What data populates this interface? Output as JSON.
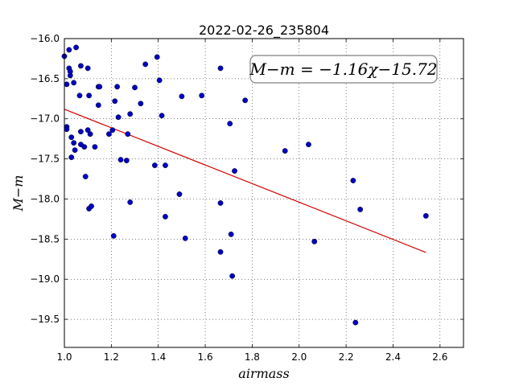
{
  "chart_data": {
    "type": "scatter",
    "title": "2022-02-26_235804",
    "xlabel": "airmass",
    "ylabel": "M−m",
    "xlim": [
      1.0,
      2.7
    ],
    "ylim": [
      -16.0,
      -19.85
    ],
    "y_inverted": true,
    "grid": true,
    "x_ticks": [
      1.0,
      1.2,
      1.4,
      1.6,
      1.8,
      2.0,
      2.2,
      2.4,
      2.6
    ],
    "x_tick_labels": [
      "1.0",
      "1.2",
      "1.4",
      "1.6",
      "1.8",
      "2.0",
      "2.2",
      "2.4",
      "2.6"
    ],
    "y_ticks": [
      -16.0,
      -16.5,
      -17.0,
      -17.5,
      -18.0,
      -18.5,
      -19.0,
      -19.5
    ],
    "y_tick_labels": [
      "−16.0",
      "−16.5",
      "−17.0",
      "−17.5",
      "−18.0",
      "−18.5",
      "−19.0",
      "−19.5"
    ],
    "annotation": "M−m = −1.16χ−15.72",
    "fit_line": {
      "slope": -1.16,
      "intercept": -15.72,
      "x_range": [
        1.0,
        2.54
      ],
      "color": "#d40000"
    },
    "marker_color": "#0000c0",
    "points": [
      {
        "x": 1.0,
        "y": -16.22
      },
      {
        "x": 1.01,
        "y": -17.1
      },
      {
        "x": 1.01,
        "y": -17.13
      },
      {
        "x": 1.01,
        "y": -16.57
      },
      {
        "x": 1.02,
        "y": -16.37
      },
      {
        "x": 1.02,
        "y": -16.14
      },
      {
        "x": 1.025,
        "y": -16.46
      },
      {
        "x": 1.025,
        "y": -16.41
      },
      {
        "x": 1.03,
        "y": -17.23
      },
      {
        "x": 1.03,
        "y": -17.48
      },
      {
        "x": 1.04,
        "y": -16.55
      },
      {
        "x": 1.04,
        "y": -17.3
      },
      {
        "x": 1.045,
        "y": -17.39
      },
      {
        "x": 1.05,
        "y": -16.11
      },
      {
        "x": 1.065,
        "y": -16.71
      },
      {
        "x": 1.07,
        "y": -17.16
      },
      {
        "x": 1.07,
        "y": -17.32
      },
      {
        "x": 1.07,
        "y": -16.34
      },
      {
        "x": 1.085,
        "y": -17.35
      },
      {
        "x": 1.09,
        "y": -17.72
      },
      {
        "x": 1.1,
        "y": -16.37
      },
      {
        "x": 1.1,
        "y": -17.14
      },
      {
        "x": 1.105,
        "y": -16.71
      },
      {
        "x": 1.105,
        "y": -18.12
      },
      {
        "x": 1.11,
        "y": -17.19
      },
      {
        "x": 1.115,
        "y": -18.09
      },
      {
        "x": 1.13,
        "y": -17.35
      },
      {
        "x": 1.145,
        "y": -16.83
      },
      {
        "x": 1.145,
        "y": -16.6
      },
      {
        "x": 1.15,
        "y": -16.6
      },
      {
        "x": 1.19,
        "y": -17.19
      },
      {
        "x": 1.205,
        "y": -17.14
      },
      {
        "x": 1.21,
        "y": -18.46
      },
      {
        "x": 1.215,
        "y": -16.78
      },
      {
        "x": 1.225,
        "y": -16.6
      },
      {
        "x": 1.23,
        "y": -16.98
      },
      {
        "x": 1.24,
        "y": -17.51
      },
      {
        "x": 1.265,
        "y": -17.52
      },
      {
        "x": 1.27,
        "y": -17.19
      },
      {
        "x": 1.28,
        "y": -18.04
      },
      {
        "x": 1.28,
        "y": -16.94
      },
      {
        "x": 1.3,
        "y": -16.61
      },
      {
        "x": 1.325,
        "y": -16.81
      },
      {
        "x": 1.345,
        "y": -16.32
      },
      {
        "x": 1.385,
        "y": -17.58
      },
      {
        "x": 1.395,
        "y": -16.23
      },
      {
        "x": 1.405,
        "y": -16.52
      },
      {
        "x": 1.415,
        "y": -16.96
      },
      {
        "x": 1.43,
        "y": -17.58
      },
      {
        "x": 1.43,
        "y": -18.22
      },
      {
        "x": 1.49,
        "y": -17.94
      },
      {
        "x": 1.5,
        "y": -16.72
      },
      {
        "x": 1.515,
        "y": -18.49
      },
      {
        "x": 1.585,
        "y": -16.71
      },
      {
        "x": 1.665,
        "y": -16.37
      },
      {
        "x": 1.665,
        "y": -18.05
      },
      {
        "x": 1.665,
        "y": -18.66
      },
      {
        "x": 1.705,
        "y": -17.06
      },
      {
        "x": 1.71,
        "y": -18.44
      },
      {
        "x": 1.715,
        "y": -18.96
      },
      {
        "x": 1.725,
        "y": -17.65
      },
      {
        "x": 1.77,
        "y": -16.77
      },
      {
        "x": 1.94,
        "y": -17.4
      },
      {
        "x": 2.04,
        "y": -17.32
      },
      {
        "x": 2.065,
        "y": -18.53
      },
      {
        "x": 2.23,
        "y": -17.77
      },
      {
        "x": 2.24,
        "y": -19.54
      },
      {
        "x": 2.26,
        "y": -18.13
      },
      {
        "x": 2.54,
        "y": -18.21
      }
    ]
  }
}
